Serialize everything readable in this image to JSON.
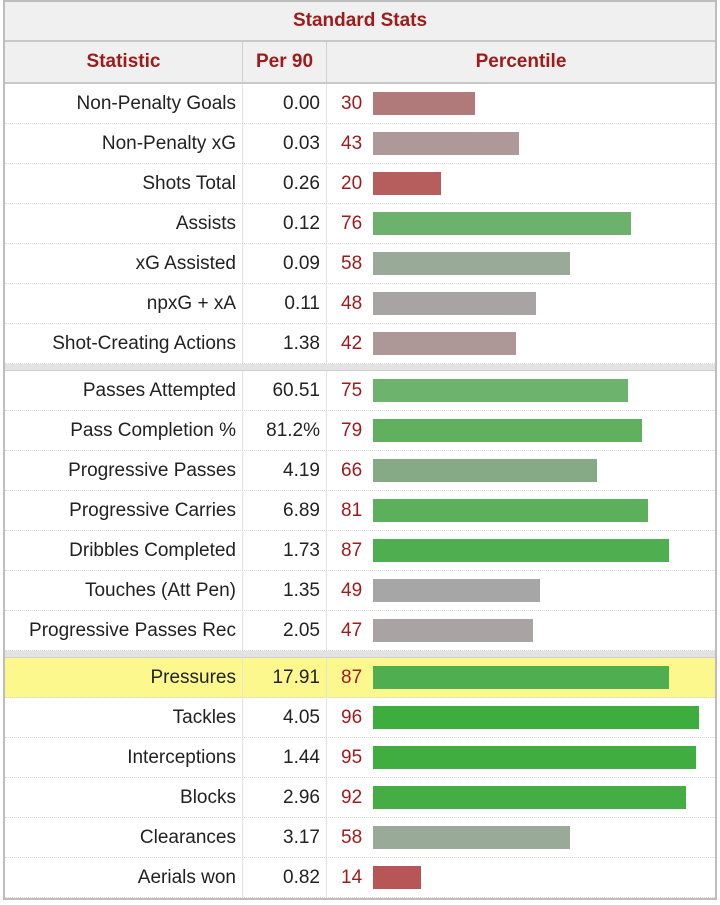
{
  "table": {
    "caption": "Standard Stats",
    "headers": {
      "statistic": "Statistic",
      "per90": "Per 90",
      "percentile": "Percentile"
    },
    "groups": [
      {
        "rows": [
          {
            "stat": "Non-Penalty Goals",
            "per90": "0.00",
            "percentile": 30,
            "color": "#b07a7a"
          },
          {
            "stat": "Non-Penalty xG",
            "per90": "0.03",
            "percentile": 43,
            "color": "#ae9898"
          },
          {
            "stat": "Shots Total",
            "per90": "0.26",
            "percentile": 20,
            "color": "#b65d5d"
          },
          {
            "stat": "Assists",
            "per90": "0.12",
            "percentile": 76,
            "color": "#6cb26c"
          },
          {
            "stat": "xG Assisted",
            "per90": "0.09",
            "percentile": 58,
            "color": "#99aa99"
          },
          {
            "stat": "npxG + xA",
            "per90": "0.11",
            "percentile": 48,
            "color": "#a8a4a4"
          },
          {
            "stat": "Shot-Creating Actions",
            "per90": "1.38",
            "percentile": 42,
            "color": "#ae9797"
          }
        ]
      },
      {
        "rows": [
          {
            "stat": "Passes Attempted",
            "per90": "60.51",
            "percentile": 75,
            "color": "#6db26d"
          },
          {
            "stat": "Pass Completion %",
            "per90": "81.2%",
            "percentile": 79,
            "color": "#60b060"
          },
          {
            "stat": "Progressive Passes",
            "per90": "4.19",
            "percentile": 66,
            "color": "#86aa86"
          },
          {
            "stat": "Progressive Carries",
            "per90": "6.89",
            "percentile": 81,
            "color": "#5cb05c"
          },
          {
            "stat": "Dribbles Completed",
            "per90": "1.73",
            "percentile": 87,
            "color": "#4fae4f"
          },
          {
            "stat": "Touches (Att Pen)",
            "per90": "1.35",
            "percentile": 49,
            "color": "#a7a6a6"
          },
          {
            "stat": "Progressive Passes Rec",
            "per90": "2.05",
            "percentile": 47,
            "color": "#a9a3a3"
          }
        ]
      },
      {
        "rows": [
          {
            "stat": "Pressures",
            "per90": "17.91",
            "percentile": 87,
            "color": "#4fae4f",
            "highlight": true
          },
          {
            "stat": "Tackles",
            "per90": "4.05",
            "percentile": 96,
            "color": "#3dad3d"
          },
          {
            "stat": "Interceptions",
            "per90": "1.44",
            "percentile": 95,
            "color": "#3fad3f"
          },
          {
            "stat": "Blocks",
            "per90": "2.96",
            "percentile": 92,
            "color": "#44ad44"
          },
          {
            "stat": "Clearances",
            "per90": "3.17",
            "percentile": 58,
            "color": "#99aa99"
          },
          {
            "stat": "Aerials won",
            "per90": "0.82",
            "percentile": 14,
            "color": "#b65656"
          }
        ]
      }
    ]
  }
}
